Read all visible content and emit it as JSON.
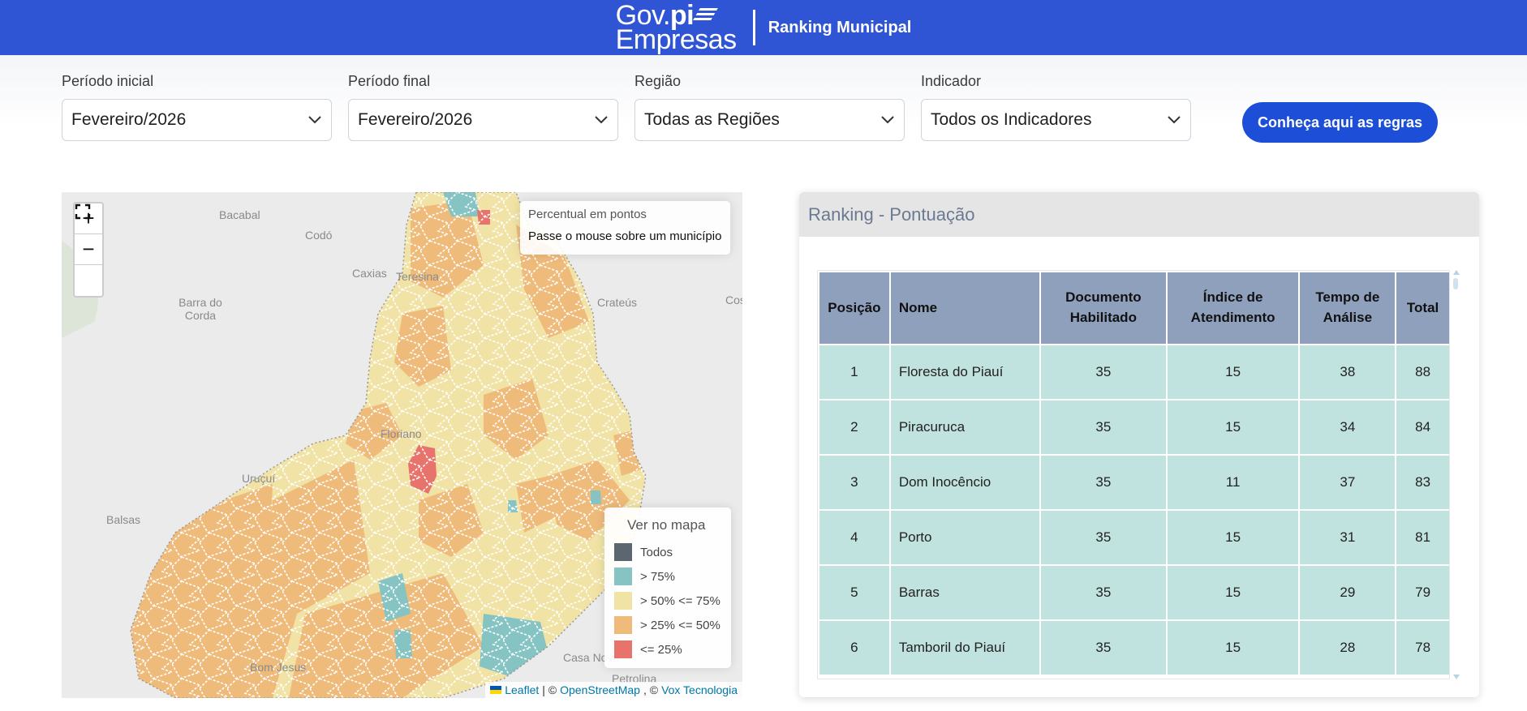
{
  "header": {
    "logo_gov": "Gov.",
    "logo_pi": "pi",
    "logo_empresas": "Empresas",
    "title": "Ranking Municipal"
  },
  "filters": {
    "periodo_inicial": {
      "label": "Período inicial",
      "value": "Fevereiro/2026"
    },
    "periodo_final": {
      "label": "Período final",
      "value": "Fevereiro/2026"
    },
    "regiao": {
      "label": "Região",
      "value": "Todas as Regiões"
    },
    "indicador": {
      "label": "Indicador",
      "value": "Todos os Indicadores"
    }
  },
  "rules_button": "Conheça aqui as regras",
  "map": {
    "zoom_in": "+",
    "zoom_out": "−",
    "info_title": "Percentual em pontos",
    "info_text": "Passe o mouse sobre um município",
    "place_labels": [
      "Bacabal",
      "Codó",
      "Caxias",
      "Teresina",
      "Barra do Corda",
      "Crateús",
      "Floriano",
      "Uruçuí",
      "Balsas",
      "Bom Jesus",
      "Casa Nova",
      "Petrolina",
      "Coss"
    ],
    "legend": {
      "title": "Ver no mapa",
      "items": [
        {
          "label": "Todos",
          "color": "#5b6670"
        },
        {
          "label": "> 75%",
          "color": "#86c4c4"
        },
        {
          "label": "> 50% <= 75%",
          "color": "#f1e3a6"
        },
        {
          "label": "> 25% <= 50%",
          "color": "#efbb7b"
        },
        {
          "label": "<= 25%",
          "color": "#e8736c"
        }
      ]
    },
    "attribution": {
      "leaflet": "Leaflet",
      "sep1": "| ©",
      "osm": "OpenStreetMap",
      "sep2": ", ©",
      "vox": "Vox Tecnologia"
    }
  },
  "ranking": {
    "title": "Ranking - Pontuação",
    "columns": [
      "Posição",
      "Nome",
      "Documento Habilitado",
      "Índice de Atendimento",
      "Tempo de Análise",
      "Total"
    ],
    "rows": [
      [
        "1",
        "Floresta do Piauí",
        "35",
        "15",
        "38",
        "88"
      ],
      [
        "2",
        "Piracuruca",
        "35",
        "15",
        "34",
        "84"
      ],
      [
        "3",
        "Dom Inocêncio",
        "35",
        "11",
        "37",
        "83"
      ],
      [
        "4",
        "Porto",
        "35",
        "15",
        "31",
        "81"
      ],
      [
        "5",
        "Barras",
        "35",
        "15",
        "29",
        "79"
      ],
      [
        "6",
        "Tamboril do Piauí",
        "35",
        "15",
        "28",
        "78"
      ]
    ]
  },
  "colors": {
    "header_bg": "#2f55d4",
    "button_bg": "#1d4ed8",
    "table_header": "#8fa0bc",
    "table_row": "#c1e3df"
  }
}
